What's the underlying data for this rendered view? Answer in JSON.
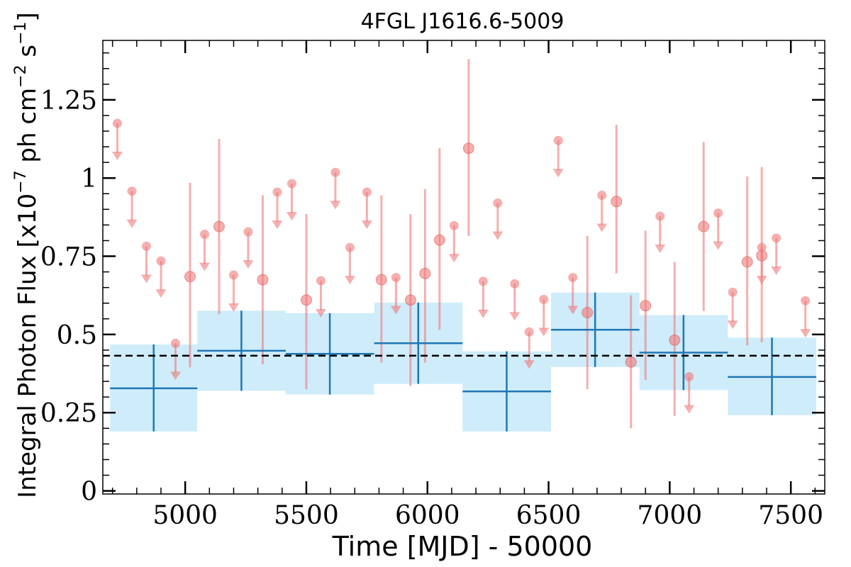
{
  "chart_data": {
    "type": "scatter",
    "title": "4FGL J1616.6-5009",
    "xlabel": "Time [MJD] - 50000",
    "ylabel": {
      "main": "Integral Photon Flux [x10",
      "exp1": "−7",
      "mid": " ph cm",
      "exp2": "−2",
      "mid2": " s",
      "exp3": "−1",
      "end": "]"
    },
    "xlim": [
      4660,
      7640
    ],
    "ylim": [
      -0.01,
      1.44
    ],
    "xticks": [
      5000,
      5500,
      6000,
      6500,
      7000,
      7500
    ],
    "xtick_labels": [
      "5000",
      "5500",
      "6000",
      "6500",
      "7000",
      "7500"
    ],
    "yticks": [
      0,
      0.25,
      0.5,
      0.75,
      1,
      1.25
    ],
    "ytick_labels": [
      "0",
      "0.25",
      "0.5",
      "0.75",
      "1",
      "1.25"
    ],
    "mean_flux": 0.432,
    "colors": {
      "point": "#ee7a7a",
      "bin_line": "#1f77b4",
      "bin_band": "#87d0f5",
      "mean_line": "#000000"
    },
    "binned": [
      {
        "x0": 4690,
        "x1": 5050,
        "x": 4870,
        "y": 0.328,
        "ylo": 0.19,
        "yhi": 0.468
      },
      {
        "x0": 5050,
        "x1": 5415,
        "x": 5232,
        "y": 0.448,
        "ylo": 0.32,
        "yhi": 0.576
      },
      {
        "x0": 5415,
        "x1": 5780,
        "x": 5597,
        "y": 0.438,
        "ylo": 0.308,
        "yhi": 0.568
      },
      {
        "x0": 5780,
        "x1": 6145,
        "x": 5962,
        "y": 0.472,
        "ylo": 0.342,
        "yhi": 0.602
      },
      {
        "x0": 6145,
        "x1": 6510,
        "x": 6327,
        "y": 0.318,
        "ylo": 0.19,
        "yhi": 0.446
      },
      {
        "x0": 6510,
        "x1": 6875,
        "x": 6692,
        "y": 0.515,
        "ylo": 0.396,
        "yhi": 0.634
      },
      {
        "x0": 6875,
        "x1": 7240,
        "x": 7057,
        "y": 0.442,
        "ylo": 0.322,
        "yhi": 0.562
      },
      {
        "x0": 7240,
        "x1": 7605,
        "x": 7422,
        "y": 0.364,
        "ylo": 0.242,
        "yhi": 0.49
      }
    ],
    "upper_limits": [
      {
        "x": 4720,
        "y": 1.175
      },
      {
        "x": 4780,
        "y": 0.958
      },
      {
        "x": 4840,
        "y": 0.782
      },
      {
        "x": 4900,
        "y": 0.735
      },
      {
        "x": 4960,
        "y": 0.472
      },
      {
        "x": 5080,
        "y": 0.82
      },
      {
        "x": 5200,
        "y": 0.69
      },
      {
        "x": 5260,
        "y": 0.828
      },
      {
        "x": 5380,
        "y": 0.955
      },
      {
        "x": 5440,
        "y": 0.982
      },
      {
        "x": 5560,
        "y": 0.672
      },
      {
        "x": 5620,
        "y": 1.018
      },
      {
        "x": 5680,
        "y": 0.778
      },
      {
        "x": 5750,
        "y": 0.955
      },
      {
        "x": 5870,
        "y": 0.682
      },
      {
        "x": 6110,
        "y": 0.848
      },
      {
        "x": 6230,
        "y": 0.67
      },
      {
        "x": 6290,
        "y": 0.92
      },
      {
        "x": 6360,
        "y": 0.662
      },
      {
        "x": 6420,
        "y": 0.508
      },
      {
        "x": 6480,
        "y": 0.612
      },
      {
        "x": 6540,
        "y": 1.12
      },
      {
        "x": 6600,
        "y": 0.682
      },
      {
        "x": 6720,
        "y": 0.945
      },
      {
        "x": 6960,
        "y": 0.878
      },
      {
        "x": 7080,
        "y": 0.365
      },
      {
        "x": 7200,
        "y": 0.888
      },
      {
        "x": 7260,
        "y": 0.635
      },
      {
        "x": 7380,
        "y": 0.778
      },
      {
        "x": 7440,
        "y": 0.808
      },
      {
        "x": 7560,
        "y": 0.608
      }
    ],
    "detections": [
      {
        "x": 5020,
        "y": 0.685,
        "ylo": 0.395,
        "yhi": 0.985
      },
      {
        "x": 5140,
        "y": 0.845,
        "ylo": 0.565,
        "yhi": 1.125
      },
      {
        "x": 5320,
        "y": 0.675,
        "ylo": 0.405,
        "yhi": 0.945
      },
      {
        "x": 5500,
        "y": 0.61,
        "ylo": 0.325,
        "yhi": 0.885
      },
      {
        "x": 5810,
        "y": 0.675,
        "ylo": 0.41,
        "yhi": 0.945
      },
      {
        "x": 5930,
        "y": 0.61,
        "ylo": 0.335,
        "yhi": 0.885
      },
      {
        "x": 5990,
        "y": 0.695,
        "ylo": 0.41,
        "yhi": 0.965
      },
      {
        "x": 6050,
        "y": 0.802,
        "ylo": 0.515,
        "yhi": 1.095
      },
      {
        "x": 6170,
        "y": 1.095,
        "ylo": 0.815,
        "yhi": 1.38
      },
      {
        "x": 6660,
        "y": 0.57,
        "ylo": 0.325,
        "yhi": 0.815
      },
      {
        "x": 6780,
        "y": 0.925,
        "ylo": 0.695,
        "yhi": 1.17
      },
      {
        "x": 6840,
        "y": 0.412,
        "ylo": 0.2,
        "yhi": 0.625
      },
      {
        "x": 6900,
        "y": 0.592,
        "ylo": 0.355,
        "yhi": 0.832
      },
      {
        "x": 7020,
        "y": 0.482,
        "ylo": 0.24,
        "yhi": 0.732
      },
      {
        "x": 7140,
        "y": 0.845,
        "ylo": 0.575,
        "yhi": 1.115
      },
      {
        "x": 7320,
        "y": 0.732,
        "ylo": 0.465,
        "yhi": 1.005
      },
      {
        "x": 7380,
        "y": 0.752,
        "ylo": 0.475,
        "yhi": 1.035
      }
    ]
  }
}
